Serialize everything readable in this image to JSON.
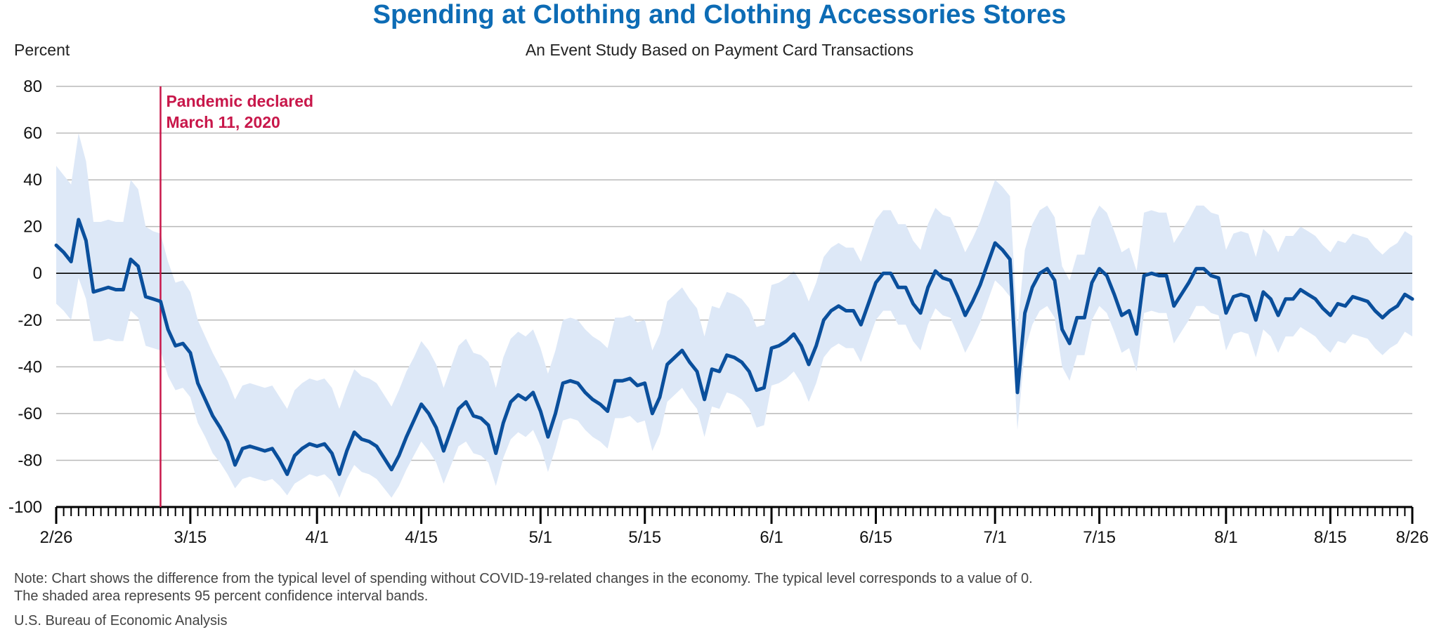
{
  "chart_data": {
    "type": "line",
    "title": "Spending at Clothing and Clothing Accessories Stores",
    "subtitle": "An Event Study Based on Payment Card Transactions",
    "ylabel": "Percent",
    "xlabel": "",
    "ylim": [
      -100,
      80
    ],
    "y_ticks": [
      80,
      60,
      40,
      20,
      0,
      -20,
      -40,
      -60,
      -80,
      -100
    ],
    "x_start_date": "2020-02-26",
    "x_end_date": "2020-08-26",
    "x_tick_labels": [
      {
        "date": "2020-02-26",
        "label": "2/26"
      },
      {
        "date": "2020-03-15",
        "label": "3/15"
      },
      {
        "date": "2020-04-01",
        "label": "4/1"
      },
      {
        "date": "2020-04-15",
        "label": "4/15"
      },
      {
        "date": "2020-05-01",
        "label": "5/1"
      },
      {
        "date": "2020-05-15",
        "label": "5/15"
      },
      {
        "date": "2020-06-01",
        "label": "6/1"
      },
      {
        "date": "2020-06-15",
        "label": "6/15"
      },
      {
        "date": "2020-07-01",
        "label": "7/1"
      },
      {
        "date": "2020-07-15",
        "label": "7/15"
      },
      {
        "date": "2020-08-01",
        "label": "8/1"
      },
      {
        "date": "2020-08-15",
        "label": "8/15"
      },
      {
        "date": "2020-08-26",
        "label": "8/26"
      }
    ],
    "grid": true,
    "annotation": {
      "date": "2020-03-11",
      "lines": [
        "Pandemic declared",
        "March 11, 2020"
      ],
      "color": "#c8174a"
    },
    "line_color": "#0a4f9c",
    "band_color": "#dde8f7",
    "series": [
      {
        "values": [
          12,
          9,
          5,
          23,
          14,
          -8,
          -7,
          -6,
          -7,
          -7,
          6,
          3,
          -10,
          -11,
          -12,
          -24,
          -31,
          -30,
          -34,
          -47,
          -54,
          -61,
          -66,
          -72,
          -82,
          -75,
          -74,
          -75,
          -76,
          -75,
          -80,
          -86,
          -78,
          -75,
          -73,
          -74,
          -73,
          -77,
          -86,
          -76,
          -68,
          -71,
          -72,
          -74,
          -79,
          -84,
          -78,
          -70,
          -63,
          -56,
          -60,
          -66,
          -76,
          -67,
          -58,
          -55,
          -61,
          -62,
          -65,
          -77,
          -64,
          -55,
          -52,
          -54,
          -51,
          -59,
          -70,
          -60,
          -47,
          -46,
          -47,
          -51,
          -54,
          -56,
          -59,
          -46,
          -46,
          -45,
          -48,
          -47,
          -60,
          -53,
          -39,
          -36,
          -33,
          -38,
          -42,
          -54,
          -41,
          -42,
          -35,
          -36,
          -38,
          -42,
          -50,
          -49,
          -32,
          -31,
          -29,
          -26,
          -31,
          -39,
          -31,
          -20,
          -16,
          -14,
          -16,
          -16,
          -22,
          -13,
          -4,
          0,
          0,
          -6,
          -6,
          -13,
          -17,
          -6,
          1,
          -2,
          -3,
          -10,
          -18,
          -12,
          -5,
          4,
          13,
          10,
          6,
          -51,
          -17,
          -6,
          0,
          2,
          -3,
          -24,
          -30,
          -19,
          -19,
          -4,
          2,
          -1,
          -9,
          -18,
          -16,
          -26,
          -1,
          0,
          -1,
          -1,
          -14,
          -9,
          -4,
          2,
          2,
          -1,
          -2,
          -17,
          -10,
          -9,
          -10,
          -20,
          -8,
          -11,
          -18,
          -11,
          -11,
          -7,
          -9,
          -11,
          -15,
          -18,
          -13,
          -14,
          -10,
          -11,
          -12,
          -16,
          -19,
          -16,
          -14,
          -9,
          -11
        ],
        "upper": [
          46,
          42,
          38,
          60,
          48,
          22,
          22,
          23,
          22,
          22,
          40,
          36,
          20,
          18,
          17,
          5,
          -4,
          -3,
          -8,
          -20,
          -27,
          -34,
          -40,
          -46,
          -54,
          -48,
          -47,
          -48,
          -49,
          -48,
          -53,
          -58,
          -50,
          -47,
          -45,
          -46,
          -45,
          -49,
          -58,
          -49,
          -41,
          -44,
          -45,
          -47,
          -52,
          -57,
          -50,
          -42,
          -36,
          -29,
          -33,
          -39,
          -49,
          -40,
          -31,
          -28,
          -34,
          -35,
          -38,
          -49,
          -36,
          -28,
          -25,
          -27,
          -24,
          -32,
          -43,
          -33,
          -20,
          -19,
          -20,
          -24,
          -27,
          -29,
          -32,
          -19,
          -19,
          -18,
          -21,
          -20,
          -33,
          -26,
          -12,
          -9,
          -6,
          -11,
          -15,
          -27,
          -14,
          -15,
          -8,
          -9,
          -11,
          -15,
          -23,
          -22,
          -5,
          -4,
          -2,
          1,
          -4,
          -12,
          -4,
          7,
          11,
          13,
          11,
          11,
          5,
          14,
          23,
          27,
          27,
          21,
          21,
          14,
          10,
          21,
          28,
          25,
          24,
          17,
          9,
          15,
          22,
          31,
          40,
          37,
          33,
          -24,
          10,
          21,
          27,
          29,
          24,
          3,
          -3,
          8,
          8,
          23,
          29,
          26,
          18,
          9,
          11,
          1,
          26,
          27,
          26,
          26,
          13,
          18,
          23,
          29,
          29,
          26,
          25,
          10,
          17,
          18,
          17,
          7,
          19,
          16,
          9,
          16,
          16,
          20,
          18,
          16,
          12,
          9,
          14,
          13,
          17,
          16,
          15,
          11,
          8,
          11,
          13,
          18,
          16
        ],
        "lower": [
          -13,
          -16,
          -20,
          -2,
          -11,
          -29,
          -29,
          -28,
          -29,
          -29,
          -16,
          -19,
          -31,
          -32,
          -33,
          -44,
          -50,
          -49,
          -53,
          -64,
          -70,
          -77,
          -81,
          -86,
          -92,
          -88,
          -87,
          -88,
          -89,
          -88,
          -91,
          -95,
          -90,
          -88,
          -86,
          -87,
          -86,
          -89,
          -96,
          -88,
          -82,
          -85,
          -86,
          -88,
          -92,
          -96,
          -91,
          -84,
          -78,
          -72,
          -76,
          -81,
          -90,
          -82,
          -74,
          -72,
          -77,
          -78,
          -81,
          -91,
          -79,
          -71,
          -68,
          -70,
          -67,
          -74,
          -85,
          -75,
          -63,
          -62,
          -63,
          -67,
          -70,
          -72,
          -75,
          -62,
          -62,
          -61,
          -64,
          -63,
          -76,
          -69,
          -55,
          -52,
          -49,
          -54,
          -58,
          -70,
          -57,
          -58,
          -51,
          -52,
          -54,
          -58,
          -66,
          -65,
          -48,
          -47,
          -45,
          -42,
          -47,
          -55,
          -47,
          -36,
          -32,
          -30,
          -32,
          -32,
          -38,
          -29,
          -20,
          -16,
          -16,
          -22,
          -22,
          -29,
          -33,
          -22,
          -15,
          -18,
          -19,
          -26,
          -34,
          -28,
          -21,
          -12,
          -3,
          -6,
          -10,
          -67,
          -33,
          -22,
          -16,
          -14,
          -19,
          -40,
          -46,
          -35,
          -35,
          -20,
          -14,
          -17,
          -25,
          -34,
          -32,
          -42,
          -17,
          -16,
          -17,
          -17,
          -30,
          -25,
          -20,
          -14,
          -14,
          -17,
          -18,
          -33,
          -26,
          -25,
          -26,
          -36,
          -24,
          -27,
          -34,
          -27,
          -27,
          -23,
          -25,
          -27,
          -31,
          -34,
          -29,
          -30,
          -26,
          -27,
          -28,
          -32,
          -35,
          -32,
          -30,
          -25,
          -27
        ]
      }
    ]
  },
  "note_lines": [
    "Note: Chart shows the difference from the typical level of spending without COVID-19-related changes in the economy. The typical level corresponds to a value of 0.",
    "The shaded area represents 95 percent confidence interval bands."
  ],
  "source": "U.S. Bureau of Economic Analysis"
}
